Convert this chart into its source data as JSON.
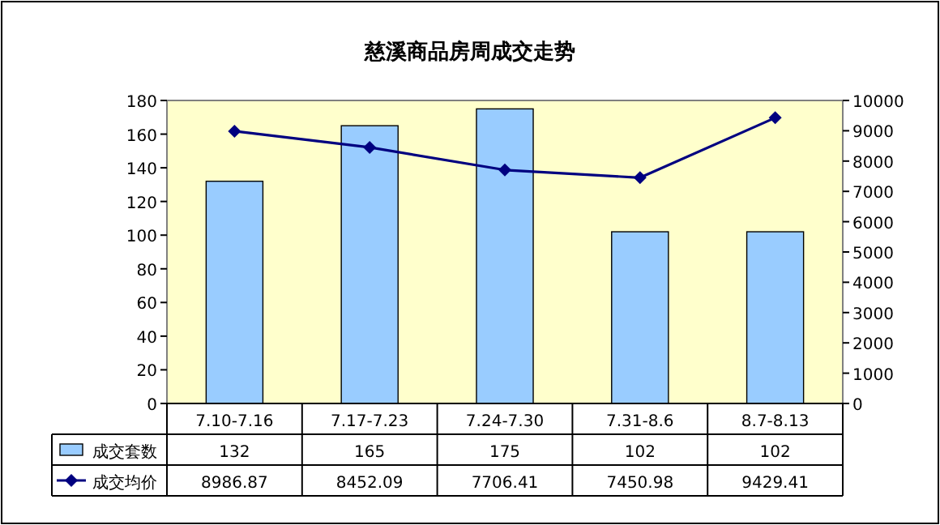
{
  "chart_data": {
    "type": "bar",
    "title": "慈溪商品房周成交走势",
    "categories": [
      "7.10-7.16",
      "7.17-7.23",
      "7.24-7.30",
      "7.31-8.6",
      "8.7-8.13"
    ],
    "series": [
      {
        "name": "成交套数",
        "color": "#99ccff",
        "values": [
          132,
          165,
          175,
          102,
          102
        ]
      },
      {
        "name": "成交均价",
        "type": "line",
        "axis": "y2",
        "color": "#000080",
        "values": [
          8986.87,
          8452.09,
          7706.41,
          7450.98,
          9429.41
        ]
      }
    ],
    "ylim": [
      0,
      180
    ],
    "yticks": [
      0,
      20,
      40,
      60,
      80,
      100,
      120,
      140,
      160,
      180
    ],
    "y2lim": [
      0,
      10000
    ],
    "y2ticks": [
      0,
      1000,
      2000,
      3000,
      4000,
      5000,
      6000,
      7000,
      8000,
      9000,
      10000
    ],
    "marker": "diamond",
    "data_labels": true,
    "legend": "bottom"
  }
}
